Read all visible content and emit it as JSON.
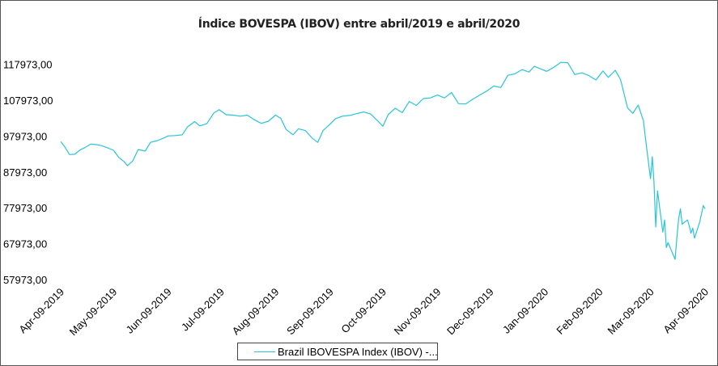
{
  "chart_data": {
    "type": "line",
    "title": "Índice BOVESPA (IBOV) entre abril/2019 e abril/2020",
    "xlabel": "",
    "ylabel": "",
    "ylim": [
      57973,
      125973
    ],
    "yticks": [
      57973,
      67973,
      77973,
      87973,
      97973,
      107973,
      117973
    ],
    "ytick_labels": [
      "57973,00",
      "67973,00",
      "77973,00",
      "87973,00",
      "97973,00",
      "107973,00",
      "117973,00"
    ],
    "xlim": [
      "2019-04-09",
      "2020-04-09"
    ],
    "xticks": [
      "2019-04-09",
      "2019-05-09",
      "2019-06-09",
      "2019-07-09",
      "2019-08-09",
      "2019-09-09",
      "2019-10-09",
      "2019-11-09",
      "2019-12-09",
      "2020-01-09",
      "2020-02-09",
      "2020-03-09",
      "2020-04-09"
    ],
    "xtick_labels": [
      "Apr-09-2019",
      "May-09-2019",
      "Jun-09-2019",
      "Jul-09-2019",
      "Aug-09-2019",
      "Sep-09-2019",
      "Oct-09-2019",
      "Nov-09-2019",
      "Dec-09-2019",
      "Jan-09-2020",
      "Feb-09-2020",
      "Mar-09-2020",
      "Apr-09-2020"
    ],
    "grid": false,
    "legend_position": "bottom",
    "series": [
      {
        "name": "Brazil IBOVESPA Index (IBOV) -...",
        "color": "#27c5dc",
        "points": [
          [
            "2019-04-09",
            96400
          ],
          [
            "2019-04-11",
            95200
          ],
          [
            "2019-04-14",
            92800
          ],
          [
            "2019-04-17",
            92900
          ],
          [
            "2019-04-20",
            94100
          ],
          [
            "2019-04-23",
            94800
          ],
          [
            "2019-04-26",
            95700
          ],
          [
            "2019-04-29",
            95600
          ],
          [
            "2019-05-02",
            95300
          ],
          [
            "2019-05-05",
            94800
          ],
          [
            "2019-05-09",
            94000
          ],
          [
            "2019-05-12",
            92000
          ],
          [
            "2019-05-15",
            90800
          ],
          [
            "2019-05-17",
            89700
          ],
          [
            "2019-05-20",
            91100
          ],
          [
            "2019-05-23",
            94200
          ],
          [
            "2019-05-27",
            93800
          ],
          [
            "2019-05-30",
            96200
          ],
          [
            "2019-06-03",
            96700
          ],
          [
            "2019-06-06",
            97300
          ],
          [
            "2019-06-09",
            98000
          ],
          [
            "2019-06-13",
            98100
          ],
          [
            "2019-06-17",
            98300
          ],
          [
            "2019-06-20",
            100500
          ],
          [
            "2019-06-24",
            102000
          ],
          [
            "2019-06-27",
            100800
          ],
          [
            "2019-07-01",
            101400
          ],
          [
            "2019-07-05",
            104400
          ],
          [
            "2019-07-08",
            105300
          ],
          [
            "2019-07-12",
            103900
          ],
          [
            "2019-07-16",
            103800
          ],
          [
            "2019-07-20",
            103500
          ],
          [
            "2019-07-24",
            103800
          ],
          [
            "2019-07-28",
            102500
          ],
          [
            "2019-08-01",
            101500
          ],
          [
            "2019-08-05",
            102100
          ],
          [
            "2019-08-09",
            103800
          ],
          [
            "2019-08-12",
            102900
          ],
          [
            "2019-08-15",
            99800
          ],
          [
            "2019-08-19",
            98300
          ],
          [
            "2019-08-22",
            100000
          ],
          [
            "2019-08-26",
            99500
          ],
          [
            "2019-08-30",
            97300
          ],
          [
            "2019-09-02",
            96200
          ],
          [
            "2019-09-05",
            99500
          ],
          [
            "2019-09-09",
            101300
          ],
          [
            "2019-09-12",
            102800
          ],
          [
            "2019-09-16",
            103500
          ],
          [
            "2019-09-20",
            103700
          ],
          [
            "2019-09-24",
            104200
          ],
          [
            "2019-09-28",
            104700
          ],
          [
            "2019-10-02",
            104100
          ],
          [
            "2019-10-06",
            102200
          ],
          [
            "2019-10-09",
            100700
          ],
          [
            "2019-10-12",
            103900
          ],
          [
            "2019-10-16",
            105700
          ],
          [
            "2019-10-20",
            104500
          ],
          [
            "2019-10-24",
            107600
          ],
          [
            "2019-10-28",
            106500
          ],
          [
            "2019-11-01",
            108400
          ],
          [
            "2019-11-05",
            108600
          ],
          [
            "2019-11-09",
            109400
          ],
          [
            "2019-11-13",
            108600
          ],
          [
            "2019-11-17",
            110100
          ],
          [
            "2019-11-21",
            107000
          ],
          [
            "2019-11-25",
            106900
          ],
          [
            "2019-11-29",
            108200
          ],
          [
            "2019-12-03",
            109400
          ],
          [
            "2019-12-07",
            110500
          ],
          [
            "2019-12-11",
            111900
          ],
          [
            "2019-12-15",
            111500
          ],
          [
            "2019-12-19",
            114900
          ],
          [
            "2019-12-23",
            115300
          ],
          [
            "2019-12-27",
            116500
          ],
          [
            "2019-12-31",
            115800
          ],
          [
            "2020-01-03",
            117400
          ],
          [
            "2020-01-06",
            116800
          ],
          [
            "2020-01-10",
            116000
          ],
          [
            "2020-01-14",
            117100
          ],
          [
            "2020-01-18",
            118500
          ],
          [
            "2020-01-22",
            118400
          ],
          [
            "2020-01-26",
            115100
          ],
          [
            "2020-01-30",
            115600
          ],
          [
            "2020-02-03",
            114800
          ],
          [
            "2020-02-07",
            113600
          ],
          [
            "2020-02-11",
            116100
          ],
          [
            "2020-02-14",
            114300
          ],
          [
            "2020-02-18",
            116300
          ],
          [
            "2020-02-21",
            113700
          ],
          [
            "2020-02-25",
            105800
          ],
          [
            "2020-02-28",
            104300
          ],
          [
            "2020-03-02",
            106600
          ],
          [
            "2020-03-05",
            102200
          ],
          [
            "2020-03-06",
            97900
          ],
          [
            "2020-03-09",
            86100
          ],
          [
            "2020-03-10",
            92200
          ],
          [
            "2020-03-11",
            85200
          ],
          [
            "2020-03-12",
            72600
          ],
          [
            "2020-03-13",
            82700
          ],
          [
            "2020-03-16",
            71200
          ],
          [
            "2020-03-17",
            74600
          ],
          [
            "2020-03-18",
            66900
          ],
          [
            "2020-03-19",
            68300
          ],
          [
            "2020-03-20",
            67100
          ],
          [
            "2020-03-23",
            63600
          ],
          [
            "2020-03-24",
            69700
          ],
          [
            "2020-03-25",
            74900
          ],
          [
            "2020-03-26",
            77700
          ],
          [
            "2020-03-27",
            73400
          ],
          [
            "2020-03-30",
            74600
          ],
          [
            "2020-03-31",
            73000
          ],
          [
            "2020-04-01",
            70900
          ],
          [
            "2020-04-02",
            72300
          ],
          [
            "2020-04-03",
            69500
          ],
          [
            "2020-04-06",
            74100
          ],
          [
            "2020-04-07",
            76400
          ],
          [
            "2020-04-08",
            78600
          ],
          [
            "2020-04-09",
            77700
          ]
        ]
      }
    ]
  }
}
